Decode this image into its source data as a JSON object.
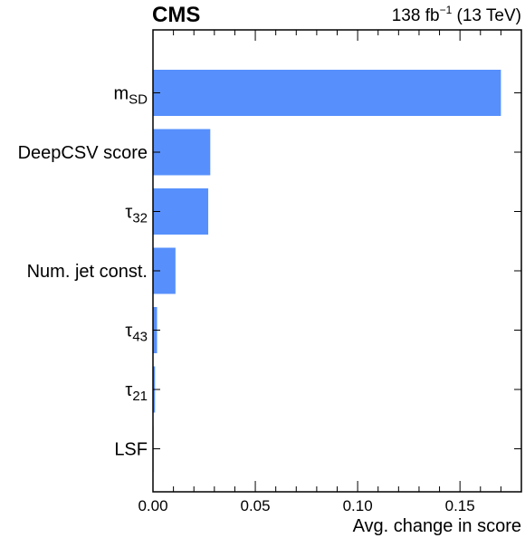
{
  "header": {
    "experiment": "CMS",
    "lumi_value": "138 fb",
    "lumi_exponent": "−1",
    "energy": "(13 TeV)"
  },
  "chart_data": {
    "type": "bar",
    "orientation": "horizontal",
    "categories": [
      {
        "base": "m",
        "sub": "SD"
      },
      {
        "base": "DeepCSV score",
        "sub": ""
      },
      {
        "base": "τ",
        "sub": "32"
      },
      {
        "base": "Num. jet const.",
        "sub": ""
      },
      {
        "base": "τ",
        "sub": "43"
      },
      {
        "base": "τ",
        "sub": "21"
      },
      {
        "base": "LSF",
        "sub": ""
      }
    ],
    "values": [
      0.17,
      0.028,
      0.027,
      0.011,
      0.002,
      0.001,
      0.0002
    ],
    "xlabel": "Avg. change in score",
    "ylabel": "",
    "xlim": [
      0,
      0.18
    ],
    "xticks": [
      0.0,
      0.05,
      0.1,
      0.15
    ],
    "xtick_labels": [
      "0.00",
      "0.05",
      "0.10",
      "0.15"
    ],
    "x_minor_ticks": [
      0.01,
      0.02,
      0.03,
      0.04,
      0.06,
      0.07,
      0.08,
      0.09,
      0.11,
      0.12,
      0.13,
      0.14,
      0.16,
      0.17
    ],
    "bar_color": "#5790fc",
    "grid": false,
    "legend": "none"
  }
}
